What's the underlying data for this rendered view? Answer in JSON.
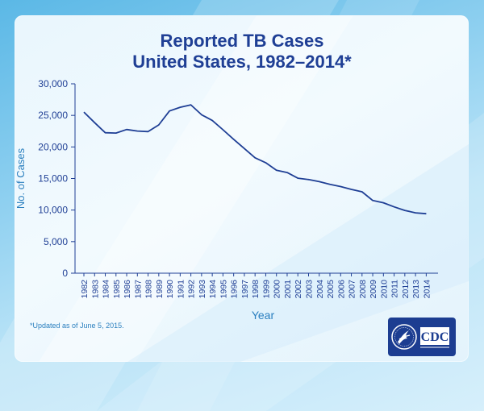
{
  "header": {
    "title_line1": "Reported TB Cases",
    "title_line2": "United States, 1982–2014*"
  },
  "footnote": "*Updated as of June 5, 2015.",
  "logo": {
    "text": "CDC",
    "icon": "hhs-eagle-icon"
  },
  "colors": {
    "title": "#1f3f95",
    "line": "#1f3f95",
    "axis_text": "#2a7fbf",
    "tick_text": "#1f3f95",
    "logo_bg": "#1c3d91"
  },
  "chart_data": {
    "type": "line",
    "title": "Reported TB Cases United States, 1982–2014*",
    "xlabel": "Year",
    "ylabel": "No. of Cases",
    "ylim": [
      0,
      30000
    ],
    "yticks": [
      0,
      5000,
      10000,
      15000,
      20000,
      25000,
      30000
    ],
    "ytick_labels": [
      "0",
      "5,000",
      "10,000",
      "15,000",
      "20,000",
      "25,000",
      "30,000"
    ],
    "x": [
      "1982",
      "1983",
      "1984",
      "1985",
      "1986",
      "1987",
      "1988",
      "1989",
      "1990",
      "1991",
      "1992",
      "1993",
      "1994",
      "1995",
      "1996",
      "1997",
      "1998",
      "1999",
      "2000",
      "2001",
      "2002",
      "2003",
      "2004",
      "2005",
      "2006",
      "2007",
      "2008",
      "2009",
      "2010",
      "2011",
      "2012",
      "2013",
      "2014"
    ],
    "series": [
      {
        "name": "Reported TB Cases",
        "values": [
          25520,
          23846,
          22255,
          22201,
          22768,
          22517,
          22436,
          23495,
          25701,
          26283,
          26673,
          25102,
          24206,
          22727,
          21210,
          19751,
          18286,
          17500,
          16309,
          15945,
          15056,
          14836,
          14499,
          14065,
          13727,
          13282,
          12898,
          11520,
          11161,
          10510,
          9941,
          9565,
          9421
        ]
      }
    ],
    "grid": false
  }
}
